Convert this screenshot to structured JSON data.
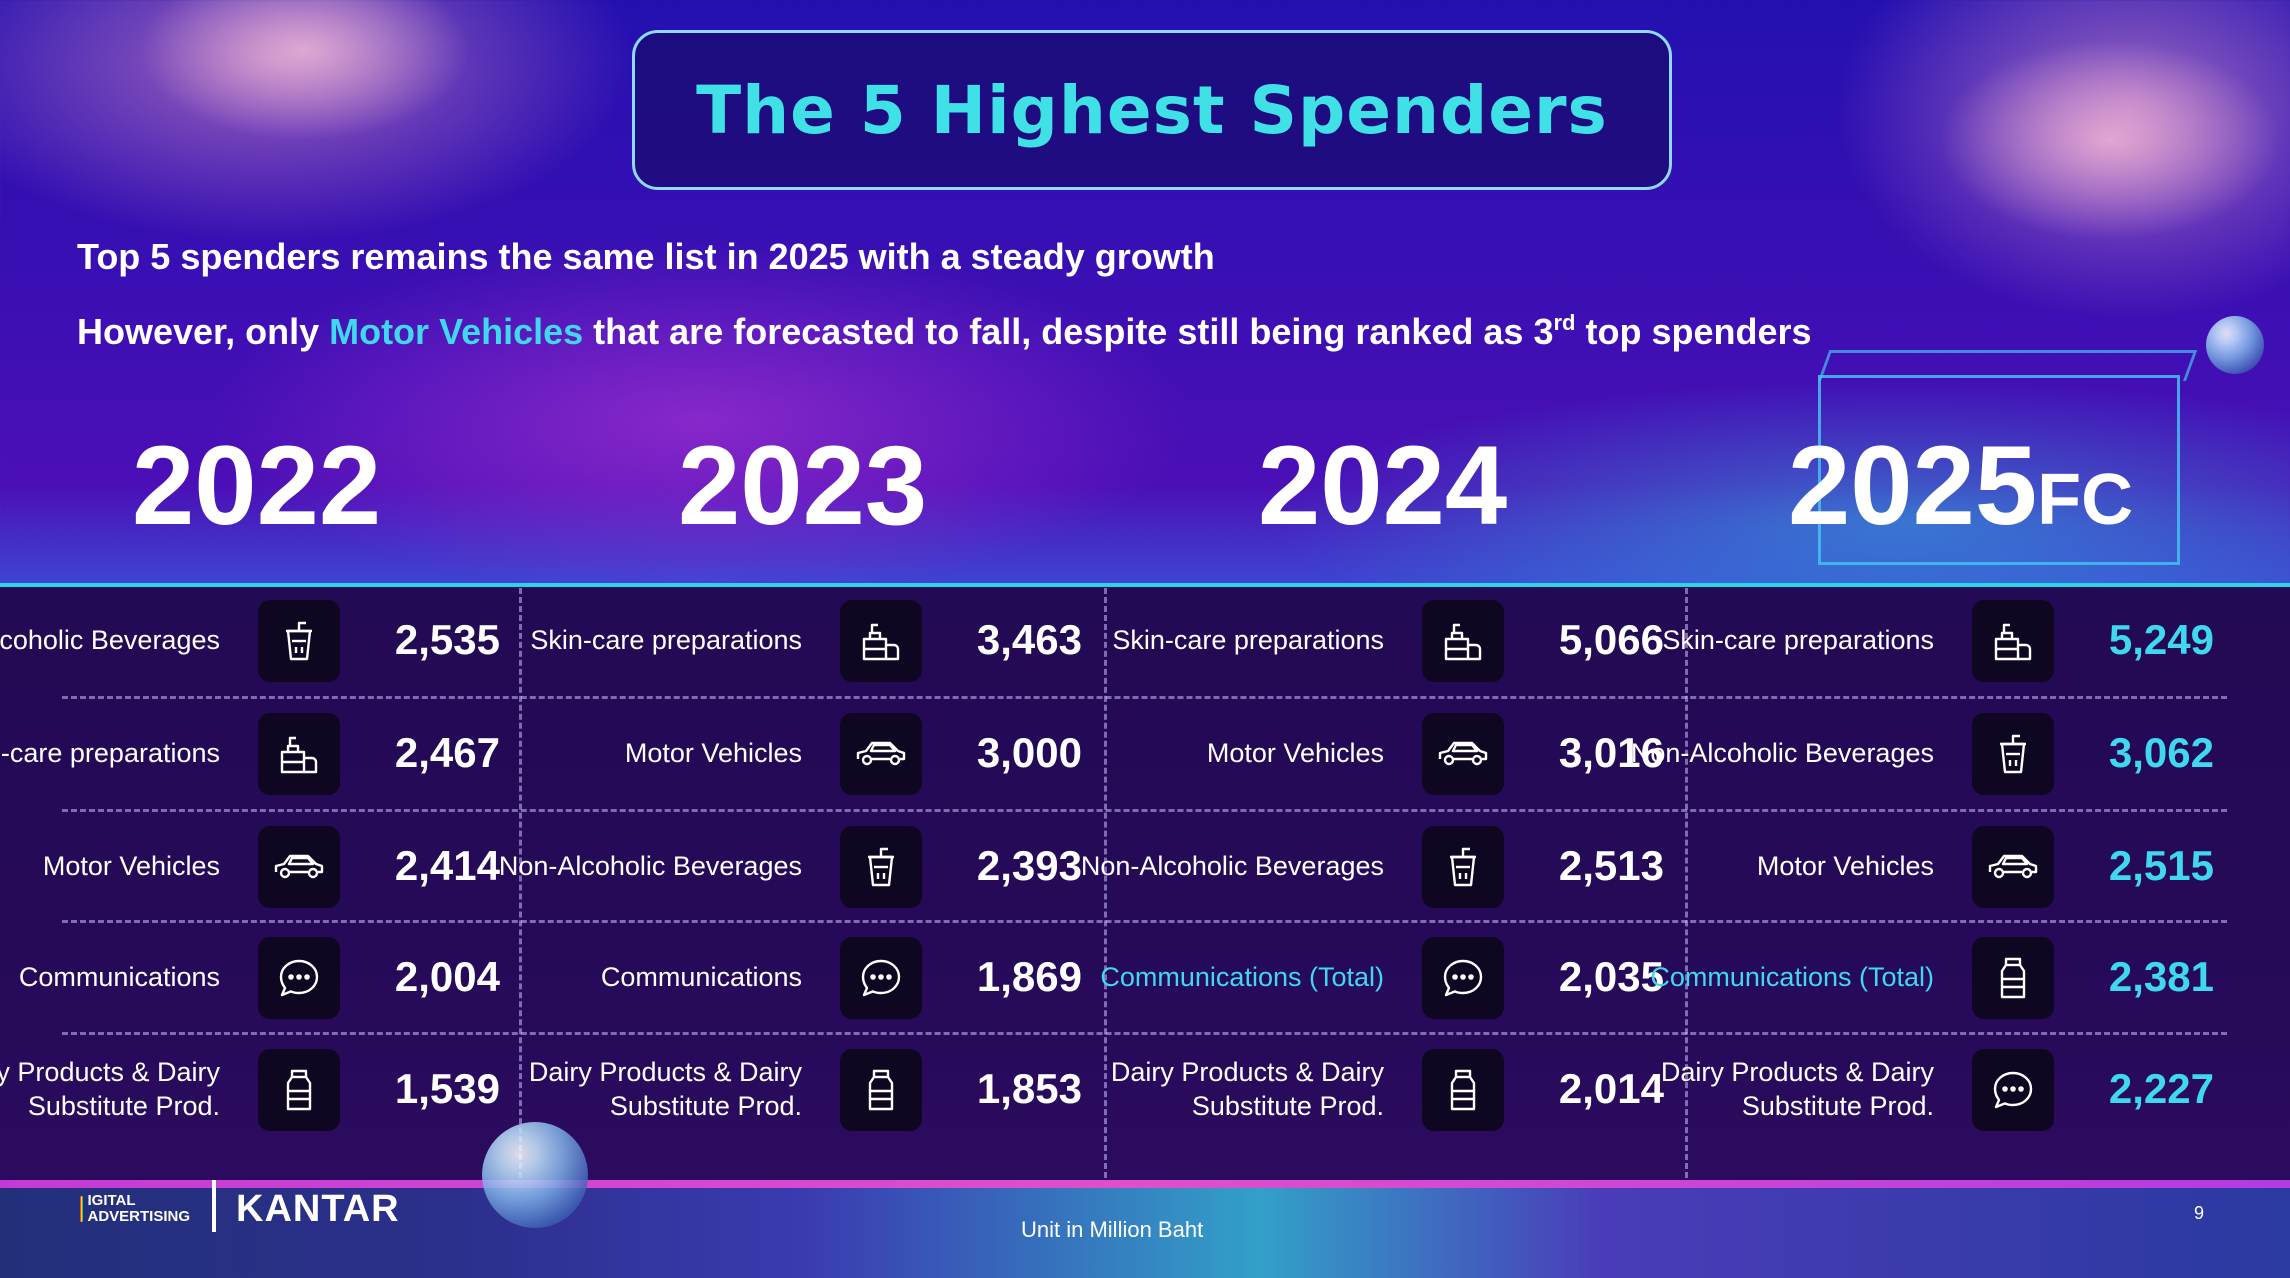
{
  "title": "The 5 Highest Spenders",
  "subtitle_line1": "Top 5 spenders remains the same list in 2025 with a steady growth",
  "subtitle_line2": {
    "before": "However, only ",
    "highlight": "Motor Vehicles",
    "after": " that are forecasted to fall, despite still being ranked as 3",
    "sup": "rd",
    "end": " top spenders"
  },
  "colors": {
    "accent": "#3fd8ee",
    "background_top": "#2410b0",
    "table_background": "#230a54",
    "icon_tile": "#0f0722"
  },
  "years": [
    {
      "year": "2022",
      "suffix": ""
    },
    {
      "year": "2023",
      "suffix": ""
    },
    {
      "year": "2024",
      "suffix": ""
    },
    {
      "year": "2025",
      "suffix": "FC"
    }
  ],
  "columns": [
    [
      {
        "label": "Non-Alcoholic Beverages",
        "icon": "drink-cup-icon",
        "value": "2,535"
      },
      {
        "label": "Skin-care preparations",
        "icon": "skincare-bottle-icon",
        "value": "2,467"
      },
      {
        "label": "Motor Vehicles",
        "icon": "car-icon",
        "value": "2,414"
      },
      {
        "label": "Communications",
        "icon": "chat-bubble-icon",
        "value": "2,004"
      },
      {
        "label": "Dairy Products & Dairy Substitute Prod.",
        "icon": "milk-bottle-icon",
        "value": "1,539"
      }
    ],
    [
      {
        "label": "Skin-care preparations",
        "icon": "skincare-bottle-icon",
        "value": "3,463"
      },
      {
        "label": "Motor Vehicles",
        "icon": "car-icon",
        "value": "3,000"
      },
      {
        "label": "Non-Alcoholic Beverages",
        "icon": "drink-cup-icon",
        "value": "2,393"
      },
      {
        "label": "Communications",
        "icon": "chat-bubble-icon",
        "value": "1,869"
      },
      {
        "label": "Dairy Products & Dairy Substitute Prod.",
        "icon": "milk-bottle-icon",
        "value": "1,853"
      }
    ],
    [
      {
        "label": "Skin-care preparations",
        "icon": "skincare-bottle-icon",
        "value": "5,066"
      },
      {
        "label": "Motor Vehicles",
        "icon": "car-icon",
        "value": "3,016"
      },
      {
        "label": "Non-Alcoholic Beverages",
        "icon": "drink-cup-icon",
        "value": "2,513"
      },
      {
        "label": "Communications (Total)",
        "icon": "chat-bubble-icon",
        "value": "2,035",
        "label_accent": true
      },
      {
        "label": "Dairy Products & Dairy Substitute Prod.",
        "icon": "milk-bottle-icon",
        "value": "2,014"
      }
    ],
    [
      {
        "label": "Skin-care preparations",
        "icon": "skincare-bottle-icon",
        "value": "5,249",
        "value_accent": true
      },
      {
        "label": "Non-Alcoholic Beverages",
        "icon": "drink-cup-icon",
        "value": "3,062",
        "value_accent": true
      },
      {
        "label": "Motor Vehicles",
        "icon": "car-icon",
        "value": "2,515",
        "value_accent": true
      },
      {
        "label": "Communications (Total)",
        "icon": "milk-bottle-icon",
        "value": "2,381",
        "label_accent": true,
        "value_accent": true
      },
      {
        "label": "Dairy Products & Dairy Substitute Prod.",
        "icon": "chat-bubble-icon",
        "value": "2,227",
        "value_accent": true
      }
    ]
  ],
  "footer": {
    "logo_da_text": "IGITAL ADVERTISING",
    "logo_kantar": "KANTAR",
    "unit_note": "Unit in Million Baht",
    "page_number": "9"
  }
}
